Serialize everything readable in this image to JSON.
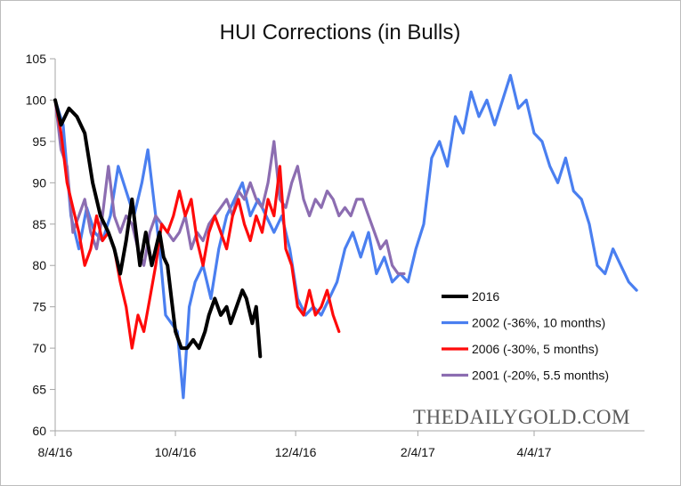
{
  "colors": {
    "2016": "#000000",
    "2002": "#4a7ff0",
    "2006": "#ff0a0a",
    "2001": "#8c6db1",
    "axis": "#a6a6a6"
  },
  "chart_data": {
    "type": "line",
    "title": "HUI Corrections (in Bulls)",
    "xlabel": "",
    "ylabel": "",
    "ylim": [
      60,
      105
    ],
    "xlim": [
      "2016-08-04",
      "2017-05-30"
    ],
    "yticks": [
      60,
      65,
      70,
      75,
      80,
      85,
      90,
      95,
      100,
      105
    ],
    "xticks": [
      {
        "label": "8/4/16",
        "date": "2016-08-04"
      },
      {
        "label": "10/4/16",
        "date": "2016-10-04"
      },
      {
        "label": "12/4/16",
        "date": "2016-12-04"
      },
      {
        "label": "2/4/17",
        "date": "2017-02-04"
      },
      {
        "label": "4/4/17",
        "date": "2017-04-04"
      }
    ],
    "legend_position": "bottom-right",
    "watermark": "THEDAILYGOLD.COM",
    "series": [
      {
        "name": "2016",
        "colorKey": "2016",
        "points": [
          [
            "2016-08-04",
            100
          ],
          [
            "2016-08-07",
            97
          ],
          [
            "2016-08-11",
            99
          ],
          [
            "2016-08-15",
            98
          ],
          [
            "2016-08-19",
            96
          ],
          [
            "2016-08-23",
            90
          ],
          [
            "2016-08-27",
            86
          ],
          [
            "2016-08-31",
            84
          ],
          [
            "2016-09-03",
            82
          ],
          [
            "2016-09-06",
            79
          ],
          [
            "2016-09-09",
            83
          ],
          [
            "2016-09-12",
            88
          ],
          [
            "2016-09-14",
            84
          ],
          [
            "2016-09-16",
            80
          ],
          [
            "2016-09-19",
            84
          ],
          [
            "2016-09-22",
            80
          ],
          [
            "2016-09-24",
            82
          ],
          [
            "2016-09-26",
            84
          ],
          [
            "2016-09-28",
            81
          ],
          [
            "2016-09-30",
            80
          ],
          [
            "2016-10-02",
            76
          ],
          [
            "2016-10-04",
            72
          ],
          [
            "2016-10-07",
            70
          ],
          [
            "2016-10-10",
            70
          ],
          [
            "2016-10-13",
            71
          ],
          [
            "2016-10-16",
            70
          ],
          [
            "2016-10-19",
            72
          ],
          [
            "2016-10-21",
            74
          ],
          [
            "2016-10-24",
            76
          ],
          [
            "2016-10-27",
            74
          ],
          [
            "2016-10-30",
            75
          ],
          [
            "2016-11-01",
            73
          ],
          [
            "2016-11-04",
            75
          ],
          [
            "2016-11-07",
            77
          ],
          [
            "2016-11-09",
            76
          ],
          [
            "2016-11-12",
            73
          ],
          [
            "2016-11-14",
            75
          ],
          [
            "2016-11-16",
            69
          ]
        ]
      },
      {
        "name": "2002 (-36%, 10 months)",
        "colorKey": "2002",
        "points": [
          [
            "2016-08-04",
            100
          ],
          [
            "2016-08-08",
            97
          ],
          [
            "2016-08-12",
            86
          ],
          [
            "2016-08-16",
            82
          ],
          [
            "2016-08-20",
            87
          ],
          [
            "2016-08-24",
            84
          ],
          [
            "2016-08-28",
            83
          ],
          [
            "2016-09-01",
            86
          ],
          [
            "2016-09-05",
            92
          ],
          [
            "2016-09-09",
            89
          ],
          [
            "2016-09-13",
            86
          ],
          [
            "2016-09-17",
            90
          ],
          [
            "2016-09-20",
            94
          ],
          [
            "2016-09-23",
            88
          ],
          [
            "2016-09-26",
            82
          ],
          [
            "2016-09-29",
            74
          ],
          [
            "2016-10-02",
            73
          ],
          [
            "2016-10-05",
            72
          ],
          [
            "2016-10-08",
            64
          ],
          [
            "2016-10-11",
            75
          ],
          [
            "2016-10-14",
            78
          ],
          [
            "2016-10-18",
            80
          ],
          [
            "2016-10-22",
            76
          ],
          [
            "2016-10-26",
            82
          ],
          [
            "2016-10-30",
            86
          ],
          [
            "2016-11-03",
            88
          ],
          [
            "2016-11-07",
            90
          ],
          [
            "2016-11-11",
            86
          ],
          [
            "2016-11-15",
            88
          ],
          [
            "2016-11-19",
            86
          ],
          [
            "2016-11-23",
            84
          ],
          [
            "2016-11-27",
            86
          ],
          [
            "2016-12-01",
            82
          ],
          [
            "2016-12-05",
            76
          ],
          [
            "2016-12-09",
            74
          ],
          [
            "2016-12-13",
            75
          ],
          [
            "2016-12-17",
            74
          ],
          [
            "2016-12-21",
            76
          ],
          [
            "2016-12-25",
            78
          ],
          [
            "2016-12-29",
            82
          ],
          [
            "2017-01-02",
            84
          ],
          [
            "2017-01-06",
            81
          ],
          [
            "2017-01-10",
            84
          ],
          [
            "2017-01-14",
            79
          ],
          [
            "2017-01-18",
            81
          ],
          [
            "2017-01-22",
            78
          ],
          [
            "2017-01-26",
            79
          ],
          [
            "2017-01-30",
            78
          ],
          [
            "2017-02-03",
            82
          ],
          [
            "2017-02-07",
            85
          ],
          [
            "2017-02-11",
            93
          ],
          [
            "2017-02-15",
            95
          ],
          [
            "2017-02-19",
            92
          ],
          [
            "2017-02-23",
            98
          ],
          [
            "2017-02-27",
            96
          ],
          [
            "2017-03-03",
            101
          ],
          [
            "2017-03-07",
            98
          ],
          [
            "2017-03-11",
            100
          ],
          [
            "2017-03-15",
            97
          ],
          [
            "2017-03-19",
            100
          ],
          [
            "2017-03-23",
            103
          ],
          [
            "2017-03-27",
            99
          ],
          [
            "2017-03-31",
            100
          ],
          [
            "2017-04-04",
            96
          ],
          [
            "2017-04-08",
            95
          ],
          [
            "2017-04-12",
            92
          ],
          [
            "2017-04-16",
            90
          ],
          [
            "2017-04-20",
            93
          ],
          [
            "2017-04-24",
            89
          ],
          [
            "2017-04-28",
            88
          ],
          [
            "2017-05-02",
            85
          ],
          [
            "2017-05-06",
            80
          ],
          [
            "2017-05-10",
            79
          ],
          [
            "2017-05-14",
            82
          ],
          [
            "2017-05-18",
            80
          ],
          [
            "2017-05-22",
            78
          ],
          [
            "2017-05-26",
            77
          ]
        ]
      },
      {
        "name": "2006 (-30%, 5 months)",
        "colorKey": "2006",
        "points": [
          [
            "2016-08-04",
            100
          ],
          [
            "2016-08-07",
            96
          ],
          [
            "2016-08-10",
            90
          ],
          [
            "2016-08-13",
            87
          ],
          [
            "2016-08-16",
            84
          ],
          [
            "2016-08-19",
            80
          ],
          [
            "2016-08-22",
            82
          ],
          [
            "2016-08-25",
            86
          ],
          [
            "2016-08-28",
            83
          ],
          [
            "2016-08-31",
            84
          ],
          [
            "2016-09-03",
            82
          ],
          [
            "2016-09-06",
            78
          ],
          [
            "2016-09-09",
            75
          ],
          [
            "2016-09-12",
            70
          ],
          [
            "2016-09-15",
            74
          ],
          [
            "2016-09-18",
            72
          ],
          [
            "2016-09-21",
            76
          ],
          [
            "2016-09-24",
            80
          ],
          [
            "2016-09-27",
            85
          ],
          [
            "2016-09-30",
            84
          ],
          [
            "2016-10-03",
            86
          ],
          [
            "2016-10-06",
            89
          ],
          [
            "2016-10-09",
            86
          ],
          [
            "2016-10-12",
            88
          ],
          [
            "2016-10-15",
            83
          ],
          [
            "2016-10-18",
            80
          ],
          [
            "2016-10-21",
            84
          ],
          [
            "2016-10-24",
            86
          ],
          [
            "2016-10-27",
            84
          ],
          [
            "2016-10-30",
            82
          ],
          [
            "2016-11-02",
            86
          ],
          [
            "2016-11-05",
            88
          ],
          [
            "2016-11-08",
            85
          ],
          [
            "2016-11-11",
            83
          ],
          [
            "2016-11-14",
            86
          ],
          [
            "2016-11-17",
            84
          ],
          [
            "2016-11-20",
            88
          ],
          [
            "2016-11-23",
            86
          ],
          [
            "2016-11-26",
            92
          ],
          [
            "2016-11-29",
            82
          ],
          [
            "2016-12-02",
            80
          ],
          [
            "2016-12-05",
            75
          ],
          [
            "2016-12-08",
            74
          ],
          [
            "2016-12-11",
            77
          ],
          [
            "2016-12-14",
            74
          ],
          [
            "2016-12-17",
            75
          ],
          [
            "2016-12-20",
            77
          ],
          [
            "2016-12-23",
            74
          ],
          [
            "2016-12-26",
            72
          ]
        ]
      },
      {
        "name": "2001 (-20%, 5.5 months)",
        "colorKey": "2001",
        "points": [
          [
            "2016-08-04",
            100
          ],
          [
            "2016-08-07",
            94
          ],
          [
            "2016-08-10",
            92
          ],
          [
            "2016-08-13",
            84
          ],
          [
            "2016-08-16",
            86
          ],
          [
            "2016-08-19",
            88
          ],
          [
            "2016-08-22",
            84
          ],
          [
            "2016-08-25",
            82
          ],
          [
            "2016-08-28",
            86
          ],
          [
            "2016-08-31",
            92
          ],
          [
            "2016-09-03",
            86
          ],
          [
            "2016-09-06",
            84
          ],
          [
            "2016-09-09",
            86
          ],
          [
            "2016-09-12",
            85
          ],
          [
            "2016-09-15",
            82
          ],
          [
            "2016-09-18",
            80
          ],
          [
            "2016-09-21",
            84
          ],
          [
            "2016-09-24",
            86
          ],
          [
            "2016-09-27",
            85
          ],
          [
            "2016-09-30",
            84
          ],
          [
            "2016-10-03",
            83
          ],
          [
            "2016-10-06",
            84
          ],
          [
            "2016-10-09",
            86
          ],
          [
            "2016-10-12",
            82
          ],
          [
            "2016-10-15",
            84
          ],
          [
            "2016-10-18",
            83
          ],
          [
            "2016-10-21",
            85
          ],
          [
            "2016-10-24",
            86
          ],
          [
            "2016-10-27",
            87
          ],
          [
            "2016-10-30",
            88
          ],
          [
            "2016-11-02",
            86
          ],
          [
            "2016-11-05",
            89
          ],
          [
            "2016-11-08",
            88
          ],
          [
            "2016-11-11",
            90
          ],
          [
            "2016-11-14",
            88
          ],
          [
            "2016-11-17",
            87
          ],
          [
            "2016-11-20",
            90
          ],
          [
            "2016-11-23",
            95
          ],
          [
            "2016-11-26",
            88
          ],
          [
            "2016-11-29",
            87
          ],
          [
            "2016-12-02",
            90
          ],
          [
            "2016-12-05",
            92
          ],
          [
            "2016-12-08",
            88
          ],
          [
            "2016-12-11",
            86
          ],
          [
            "2016-12-14",
            88
          ],
          [
            "2016-12-17",
            87
          ],
          [
            "2016-12-20",
            89
          ],
          [
            "2016-12-23",
            88
          ],
          [
            "2016-12-26",
            86
          ],
          [
            "2016-12-29",
            87
          ],
          [
            "2017-01-01",
            86
          ],
          [
            "2017-01-04",
            88
          ],
          [
            "2017-01-07",
            88
          ],
          [
            "2017-01-10",
            86
          ],
          [
            "2017-01-13",
            84
          ],
          [
            "2017-01-16",
            82
          ],
          [
            "2017-01-19",
            83
          ],
          [
            "2017-01-22",
            80
          ],
          [
            "2017-01-25",
            79
          ],
          [
            "2017-01-28",
            79
          ]
        ]
      }
    ]
  }
}
